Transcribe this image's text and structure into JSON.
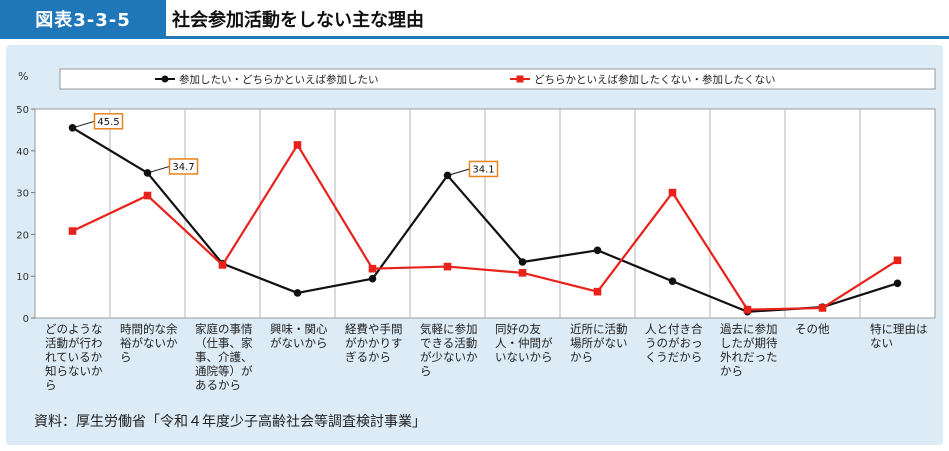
{
  "header": {
    "badge": "図表3-3-5",
    "title": "社会参加活動をしない主な理由"
  },
  "source": "資料：厚生労働省「令和４年度少子高齢社会等調査検討事業」",
  "colors": {
    "badge_bg": "#1f76b8",
    "panel_bg": "#dcebf5",
    "series1": "#111111",
    "series2": "#e8221b",
    "callout_border": "#e8821b"
  },
  "chart_data": {
    "type": "line",
    "ylabel": "%",
    "ylim": [
      0,
      50
    ],
    "yticks": [
      "0",
      "10",
      "20",
      "30",
      "40",
      "50"
    ],
    "grid": "vertical",
    "legend_position": "top",
    "categories": [
      "どのような活動が行われているか知らないから",
      "時間的な余裕がないから",
      "家庭の事情（仕事、家事、介護、通院等）があるから",
      "興味・関心がないから",
      "経費や手間がかかりすぎるから",
      "気軽に参加できる活動が少ないから",
      "同好の友人・仲間がいないから",
      "近所に活動場所がないから",
      "人と付き合うのがおっくうだから",
      "過去に参加したが期待外れだったから",
      "その他",
      "特に理由はない"
    ],
    "category_lines": [
      [
        "どのような",
        "活動が行わ",
        "れているか",
        "知らないか",
        "ら"
      ],
      [
        "時間的な余",
        "裕がないか",
        "ら"
      ],
      [
        "家庭の事情",
        "（仕事、家",
        "事、介護、",
        "通院等）が",
        "あるから"
      ],
      [
        "興味・関心",
        "がないから"
      ],
      [
        "経費や手間",
        "がかかりす",
        "ぎるから"
      ],
      [
        "気軽に参加",
        "できる活動",
        "が少ないか",
        "ら"
      ],
      [
        "同好の友",
        "人・仲間が",
        "いないから"
      ],
      [
        "近所に活動",
        "場所がない",
        "から"
      ],
      [
        "人と付き合",
        "うのがおっ",
        "くうだから"
      ],
      [
        "過去に参加",
        "したが期待",
        "外れだった",
        "から"
      ],
      [
        "その他"
      ],
      [
        "特に理由は",
        "ない"
      ]
    ],
    "series": [
      {
        "name": "参加したい・どちらかといえば参加したい",
        "marker": "circle",
        "values": [
          45.5,
          34.7,
          13.0,
          6.0,
          9.4,
          34.1,
          13.4,
          16.2,
          8.8,
          1.5,
          2.6,
          8.3
        ]
      },
      {
        "name": "どちらかといえば参加したくない・参加したくない",
        "marker": "square",
        "values": [
          20.8,
          29.3,
          12.7,
          41.4,
          11.8,
          12.3,
          10.8,
          6.3,
          30.0,
          2.0,
          2.4,
          13.8
        ]
      }
    ],
    "annotations": [
      {
        "series": 0,
        "index": 0,
        "text": "45.5"
      },
      {
        "series": 0,
        "index": 1,
        "text": "34.7"
      },
      {
        "series": 0,
        "index": 5,
        "text": "34.1"
      }
    ]
  }
}
